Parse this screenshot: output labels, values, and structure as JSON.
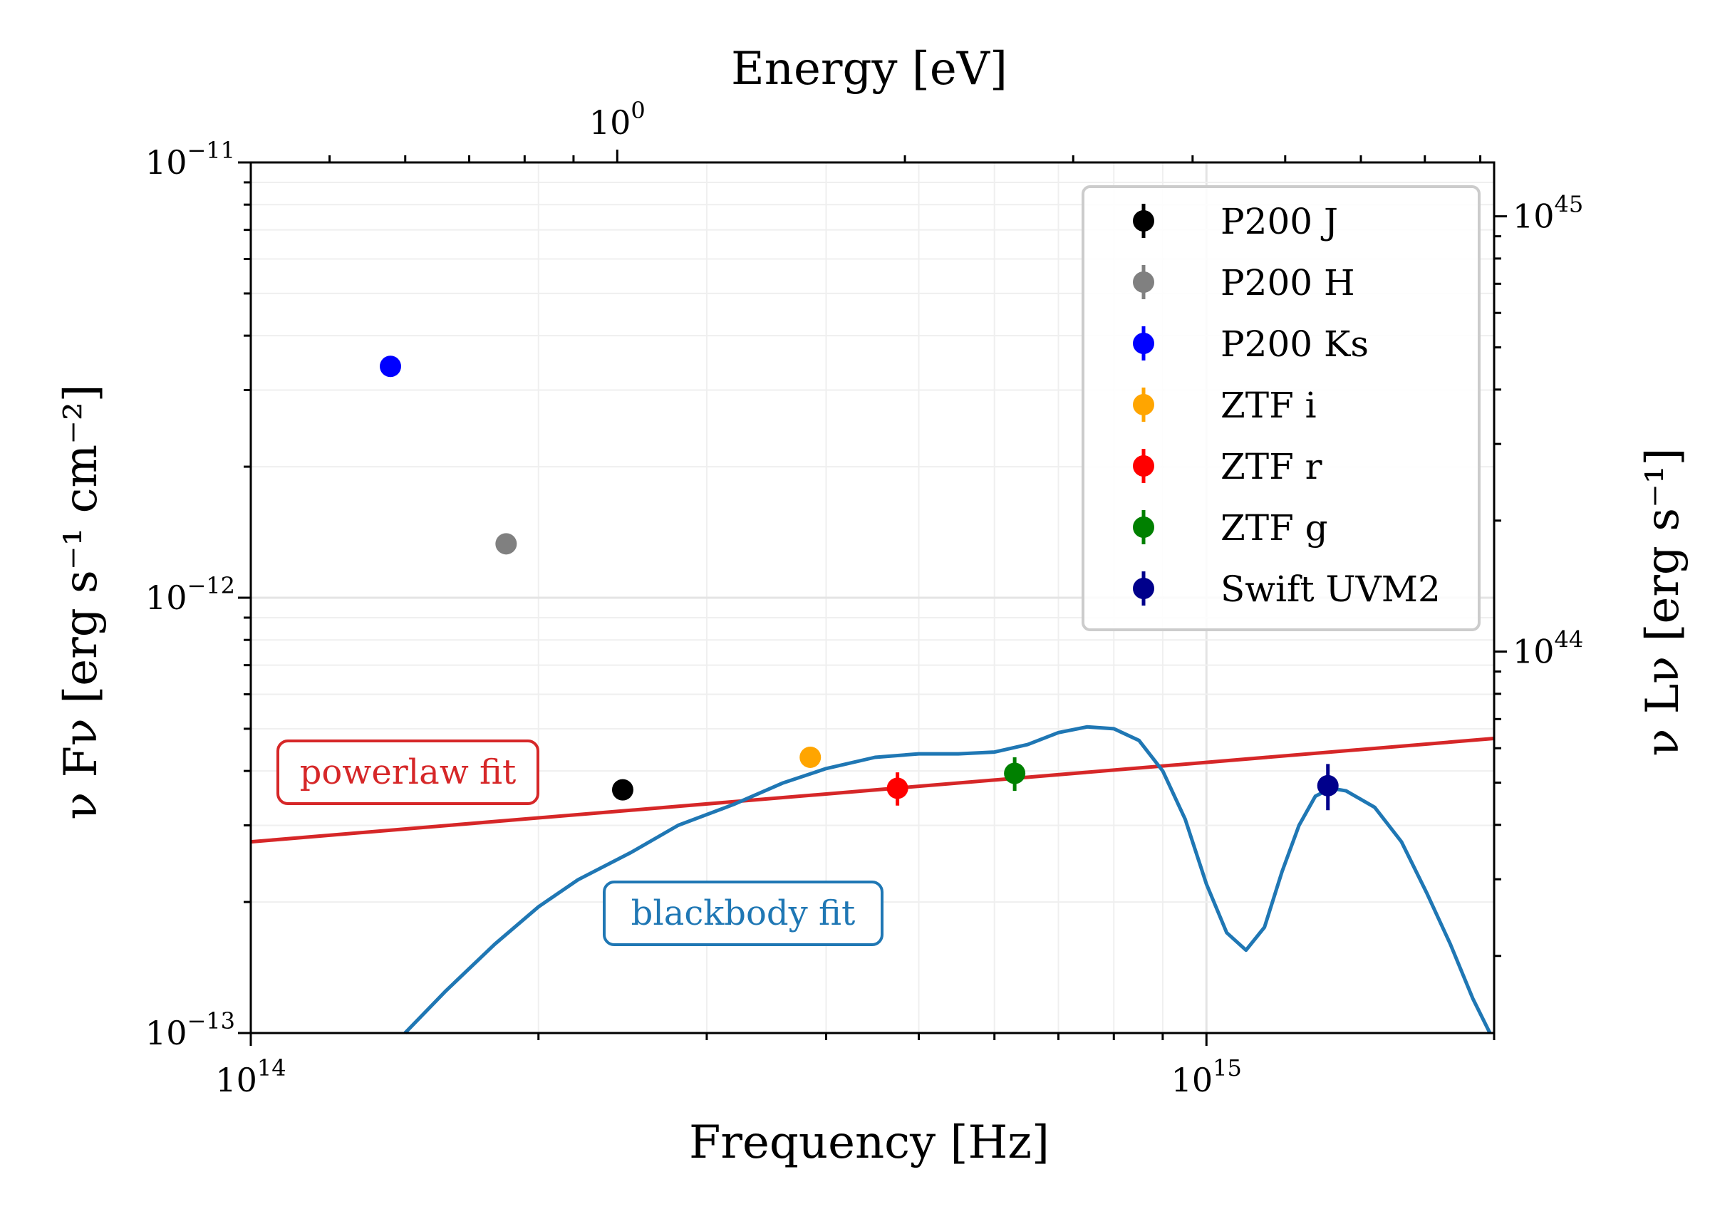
{
  "chart_data": {
    "type": "scatter",
    "title": "",
    "xlabel": "Frequency [Hz]",
    "ylabel": "ν Fν [erg s⁻¹ cm⁻²]",
    "x_top_label": "Energy [eV]",
    "y_right_label": "ν Lν [erg s⁻¹]",
    "xscale": "log",
    "yscale": "log",
    "xlim": [
      100000000000000.0,
      2000000000000000.0
    ],
    "ylim": [
      1e-13,
      1e-11
    ],
    "grid": true,
    "legend_position": "top-right",
    "x_ticks": [
      {
        "value": 100000000000000.0,
        "base": "10",
        "exp": "14"
      },
      {
        "value": 1000000000000000.0,
        "base": "10",
        "exp": "15"
      }
    ],
    "y_ticks": [
      {
        "value": 1e-13,
        "base": "10",
        "exp": "−13"
      },
      {
        "value": 1e-12,
        "base": "10",
        "exp": "−12"
      },
      {
        "value": 1e-11,
        "base": "10",
        "exp": "−11"
      }
    ],
    "top_ticks": [
      {
        "value": 1,
        "base": "10",
        "exp": "0"
      }
    ],
    "right_ticks": [
      {
        "value": 1e+44,
        "base": "10",
        "exp": "44"
      },
      {
        "value": 1e+45,
        "base": "10",
        "exp": "45"
      }
    ],
    "series": [
      {
        "name": "P200 J",
        "color": "#000000",
        "x": 245000000000000.0,
        "y": 3.62e-13,
        "yerr": 1e-14
      },
      {
        "name": "P200 H",
        "color": "#808080",
        "x": 185000000000000.0,
        "y": 1.33e-12,
        "yerr": 4e-14
      },
      {
        "name": "P200 Ks",
        "color": "#0000ff",
        "x": 140000000000000.0,
        "y": 3.4e-12,
        "yerr": 1.8e-13
      },
      {
        "name": "ZTF i",
        "color": "#ffa500",
        "x": 385000000000000.0,
        "y": 4.3e-13,
        "yerr": 1.2e-14
      },
      {
        "name": "ZTF r",
        "color": "#ff0000",
        "x": 475000000000000.0,
        "y": 3.65e-13,
        "yerr": 3.2e-14
      },
      {
        "name": "ZTF g",
        "color": "#008000",
        "x": 630000000000000.0,
        "y": 3.95e-13,
        "yerr": 3.5e-14
      },
      {
        "name": "Swift UVM2",
        "color": "#00008b",
        "x": 1340000000000000.0,
        "y": 3.7e-13,
        "yerr": 4.5e-14
      }
    ],
    "fits": [
      {
        "label": "powerlaw fit",
        "color": "#d62728",
        "x": [
          100000000000000.0,
          2000000000000000.0
        ],
        "y": [
          2.75e-13,
          4.75e-13
        ]
      },
      {
        "label": "blackbody fit",
        "color": "#1f77b4",
        "x": [
          145000000000000.0,
          160000000000000.0,
          180000000000000.0,
          200000000000000.0,
          220000000000000.0,
          250000000000000.0,
          280000000000000.0,
          320000000000000.0,
          360000000000000.0,
          400000000000000.0,
          450000000000000.0,
          500000000000000.0,
          550000000000000.0,
          600000000000000.0,
          650000000000000.0,
          700000000000000.0,
          750000000000000.0,
          800000000000000.0,
          850000000000000.0,
          900000000000000.0,
          950000000000000.0,
          1000000000000000.0,
          1050000000000000.0,
          1100000000000000.0,
          1150000000000000.0,
          1200000000000000.0,
          1250000000000000.0,
          1300000000000000.0,
          1350000000000000.0,
          1400000000000000.0,
          1500000000000000.0,
          1600000000000000.0,
          1700000000000000.0,
          1800000000000000.0,
          1900000000000000.0,
          1980000000000000.0
        ],
        "y": [
          1e-13,
          1.25e-13,
          1.6e-13,
          1.95e-13,
          2.25e-13,
          2.6e-13,
          3e-13,
          3.35e-13,
          3.75e-13,
          4.05e-13,
          4.3e-13,
          4.38e-13,
          4.38e-13,
          4.42e-13,
          4.6e-13,
          4.9e-13,
          5.05e-13,
          5e-13,
          4.7e-13,
          4e-13,
          3.1e-13,
          2.2e-13,
          1.7e-13,
          1.55e-13,
          1.75e-13,
          2.35e-13,
          3e-13,
          3.5e-13,
          3.65e-13,
          3.6e-13,
          3.3e-13,
          2.75e-13,
          2.1e-13,
          1.6e-13,
          1.2e-13,
          1e-13
        ]
      }
    ]
  }
}
